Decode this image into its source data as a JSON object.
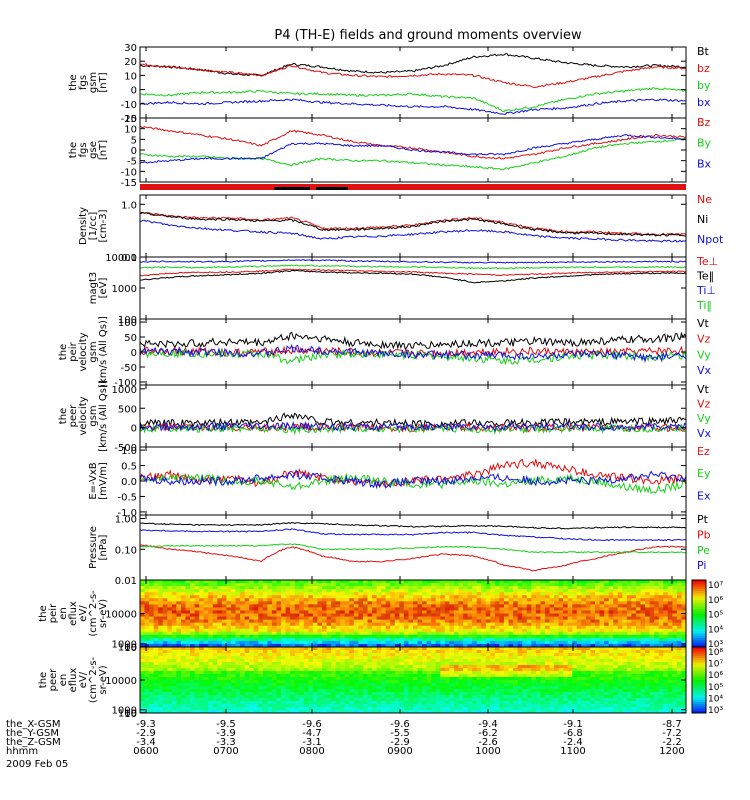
{
  "title": "P4 (TH-E) fields and ground moments overview",
  "colors": {
    "black": "#000000",
    "red": "#e01010",
    "green": "#18d018",
    "blue": "#1010e0"
  },
  "chart_data": [
    {
      "type": "line",
      "panel": "fgs_gsm",
      "ylabel": [
        "the",
        "fgs",
        "gsm",
        "[nT]"
      ],
      "ylim": [
        -20,
        30
      ],
      "yticks": [
        "30",
        "20",
        "10",
        "0",
        "-10",
        "-20"
      ],
      "series": [
        {
          "name": "Bt",
          "color": "black",
          "values": [
            17,
            16,
            14,
            11,
            10,
            18,
            16,
            13,
            12,
            13,
            17,
            23,
            25,
            22,
            19,
            17,
            16,
            17,
            16
          ]
        },
        {
          "name": "bz",
          "color": "red",
          "values": [
            18,
            16,
            14,
            12,
            10,
            17,
            12,
            10,
            9,
            10,
            11,
            10,
            5,
            2,
            5,
            9,
            13,
            16,
            15
          ]
        },
        {
          "name": "by",
          "color": "green",
          "values": [
            -3,
            -4,
            -2,
            -2,
            -1,
            -3,
            -3,
            -4,
            -4,
            -3,
            -5,
            -6,
            -15,
            -12,
            -7,
            -3,
            -1,
            1,
            -1
          ]
        },
        {
          "name": "bx",
          "color": "blue",
          "values": [
            -10,
            -9,
            -10,
            -9,
            -8,
            -7,
            -9,
            -10,
            -11,
            -12,
            -12,
            -14,
            -17,
            -14,
            -13,
            -10,
            -8,
            -7,
            -8
          ]
        }
      ]
    },
    {
      "type": "line",
      "panel": "fgs_gse",
      "ylabel": [
        "the",
        "fgs",
        "gse",
        "[nT]"
      ],
      "ylim": [
        -15,
        15
      ],
      "yticks": [
        "15",
        "10",
        "5",
        "0",
        "-5",
        "-10",
        "-15"
      ],
      "series": [
        {
          "name": "Bz",
          "color": "red",
          "values": [
            11,
            9,
            7,
            5,
            2,
            9,
            7,
            4,
            2,
            1,
            -1,
            -3,
            -4,
            -2,
            1,
            3,
            5,
            7,
            6
          ]
        },
        {
          "name": "By",
          "color": "green",
          "values": [
            -2,
            -3,
            -3,
            -4,
            -4,
            -7,
            -4,
            -5,
            -5,
            -6,
            -7,
            -8,
            -9,
            -6,
            -3,
            1,
            3,
            4,
            5
          ]
        },
        {
          "name": "Bx",
          "color": "blue",
          "values": [
            -6,
            -5,
            -4,
            -4,
            -4,
            3,
            3,
            2,
            2,
            0,
            -1,
            -2,
            -2,
            1,
            3,
            5,
            7,
            6,
            5
          ]
        }
      ]
    },
    {
      "type": "line",
      "panel": "density",
      "log": true,
      "ylabel": [
        "Density",
        "[1/cc]",
        "[cm-3]"
      ],
      "ylim": [
        0.1,
        1.5
      ],
      "yticks": [
        "1.0",
        "0.1"
      ],
      "series": [
        {
          "name": "Ne",
          "color": "red",
          "values": [
            0.7,
            0.6,
            0.55,
            0.55,
            0.5,
            0.55,
            0.35,
            0.35,
            0.37,
            0.4,
            0.5,
            0.55,
            0.45,
            0.35,
            0.3,
            0.3,
            0.28,
            0.27,
            0.27
          ]
        },
        {
          "name": "Ni",
          "color": "black",
          "values": [
            0.68,
            0.58,
            0.52,
            0.52,
            0.48,
            0.5,
            0.33,
            0.33,
            0.35,
            0.38,
            0.48,
            0.52,
            0.42,
            0.33,
            0.29,
            0.28,
            0.27,
            0.26,
            0.26
          ]
        },
        {
          "name": "Npot",
          "color": "blue",
          "values": [
            0.5,
            0.4,
            0.35,
            0.32,
            0.3,
            0.28,
            0.22,
            0.24,
            0.25,
            0.27,
            0.3,
            0.32,
            0.3,
            0.25,
            0.23,
            0.22,
            0.21,
            0.2,
            0.2
          ]
        }
      ]
    },
    {
      "type": "line",
      "panel": "temperature",
      "log": true,
      "ylabel": [
        "magt3",
        "[eV]"
      ],
      "ylim": [
        100,
        10000
      ],
      "yticks": [
        "10000",
        "1000",
        "100"
      ],
      "series": [
        {
          "name": "Te⊥",
          "color": "red",
          "values": [
            2500,
            3000,
            3200,
            3300,
            3500,
            4000,
            3800,
            3600,
            3400,
            3300,
            3000,
            2800,
            2600,
            2800,
            3000,
            3200,
            3300,
            3400,
            3400
          ]
        },
        {
          "name": "Te‖",
          "color": "black",
          "values": [
            1800,
            2200,
            2500,
            2700,
            3000,
            3600,
            3300,
            3100,
            3000,
            2800,
            2200,
            1500,
            1700,
            2100,
            2400,
            2700,
            2900,
            3000,
            3000
          ]
        },
        {
          "name": "Ti⊥",
          "color": "blue",
          "values": [
            7000,
            7200,
            7000,
            7200,
            7500,
            8000,
            7800,
            7500,
            7200,
            7000,
            6800,
            6600,
            6500,
            6700,
            6800,
            7000,
            7000,
            7200,
            7000
          ]
        },
        {
          "name": "Ti‖",
          "color": "green",
          "values": [
            4500,
            4700,
            4600,
            4800,
            5000,
            5400,
            5200,
            5000,
            4900,
            4800,
            4600,
            4400,
            4300,
            4500,
            4600,
            4700,
            4700,
            4800,
            4700
          ]
        }
      ]
    },
    {
      "type": "line",
      "panel": "peir_velocity",
      "ylabel": [
        "the",
        "peir",
        "velocity",
        "gsm",
        "[km/s (All Qs)]"
      ],
      "ylim": [
        -110,
        110
      ],
      "yticks": [
        "100",
        "50",
        "0",
        "-50",
        "-100"
      ],
      "series": [
        {
          "name": "Vt",
          "color": "black",
          "values": [
            30,
            25,
            30,
            35,
            30,
            55,
            45,
            30,
            25,
            20,
            25,
            30,
            30,
            35,
            30,
            35,
            40,
            45,
            50
          ]
        },
        {
          "name": "Vz",
          "color": "red",
          "values": [
            5,
            3,
            2,
            -2,
            0,
            5,
            3,
            0,
            -3,
            -5,
            -3,
            0,
            3,
            2,
            0,
            -2,
            0,
            3,
            5
          ]
        },
        {
          "name": "Vy",
          "color": "green",
          "values": [
            -5,
            -3,
            -5,
            -8,
            -5,
            -30,
            -10,
            -5,
            -8,
            -10,
            -15,
            -20,
            -30,
            -25,
            -15,
            -10,
            -12,
            -15,
            -10
          ]
        },
        {
          "name": "Vx",
          "color": "blue",
          "values": [
            0,
            2,
            0,
            -2,
            -5,
            10,
            5,
            0,
            -5,
            -8,
            -10,
            -12,
            -10,
            -15,
            -10,
            -8,
            -12,
            -20,
            -10
          ]
        }
      ]
    },
    {
      "type": "line",
      "panel": "peer_velocity",
      "ylabel": [
        "the",
        "peer",
        "velocity",
        "gsm",
        "[km/s (All Qs)]"
      ],
      "ylim": [
        -500,
        1100
      ],
      "yticks": [
        "1000",
        "500",
        "0",
        "-500"
      ],
      "series": [
        {
          "name": "Vt",
          "color": "black",
          "values": [
            100,
            120,
            100,
            130,
            120,
            350,
            150,
            130,
            120,
            110,
            100,
            120,
            110,
            130,
            140,
            150,
            160,
            170,
            180
          ]
        },
        {
          "name": "Vz",
          "color": "red",
          "values": [
            0,
            10,
            -10,
            10,
            0,
            20,
            0,
            10,
            0,
            -10,
            0,
            10,
            0,
            -10,
            0,
            10,
            0,
            -10,
            0
          ]
        },
        {
          "name": "Vy",
          "color": "green",
          "values": [
            -20,
            -10,
            -30,
            -20,
            -10,
            -60,
            -30,
            -20,
            -30,
            -20,
            -40,
            -30,
            -50,
            -30,
            -20,
            -30,
            -40,
            -30,
            -20
          ]
        },
        {
          "name": "Vx",
          "color": "blue",
          "values": [
            20,
            10,
            20,
            30,
            20,
            40,
            30,
            20,
            10,
            20,
            30,
            20,
            10,
            20,
            30,
            20,
            10,
            20,
            30
          ]
        }
      ]
    },
    {
      "type": "line",
      "panel": "efield",
      "ylabel": [
        "E=-VxB",
        "[mV/m]"
      ],
      "ylim": [
        -1.1,
        1.1
      ],
      "yticks": [
        "1.0",
        "0.5",
        "0.0",
        "-0.5",
        "-1.0"
      ],
      "series": [
        {
          "name": "Ez",
          "color": "red",
          "values": [
            0.1,
            0.2,
            0.0,
            0.1,
            -0.1,
            0.3,
            0.1,
            0.0,
            -0.1,
            0.0,
            0.1,
            0.2,
            0.5,
            0.6,
            0.4,
            0.2,
            0.1,
            0.0,
            0.1
          ]
        },
        {
          "name": "Ey",
          "color": "green",
          "values": [
            0.0,
            0.1,
            0.1,
            0.0,
            0.0,
            -0.2,
            0.0,
            0.1,
            0.0,
            -0.1,
            -0.1,
            0.0,
            -0.1,
            0.0,
            0.1,
            0.0,
            -0.2,
            -0.3,
            -0.1
          ]
        },
        {
          "name": "Ex",
          "color": "blue",
          "values": [
            0.1,
            0.0,
            0.0,
            0.0,
            0.1,
            0.2,
            0.1,
            0.0,
            -0.1,
            0.0,
            0.0,
            0.1,
            0.1,
            0.0,
            0.0,
            0.0,
            0.1,
            0.2,
            0.1
          ]
        }
      ]
    },
    {
      "type": "line",
      "panel": "pressure",
      "log": true,
      "ylabel": [
        "Pressure",
        "[nPa]"
      ],
      "ylim": [
        0.01,
        1.3
      ],
      "yticks": [
        "1.00",
        "0.10",
        "0.01"
      ],
      "series": [
        {
          "name": "Pt",
          "color": "black",
          "values": [
            0.7,
            0.65,
            0.62,
            0.62,
            0.62,
            0.72,
            0.68,
            0.62,
            0.58,
            0.55,
            0.56,
            0.58,
            0.56,
            0.5,
            0.48,
            0.5,
            0.52,
            0.52,
            0.5
          ]
        },
        {
          "name": "Pb",
          "color": "red",
          "values": [
            0.14,
            0.1,
            0.08,
            0.06,
            0.04,
            0.12,
            0.06,
            0.04,
            0.04,
            0.05,
            0.07,
            0.06,
            0.03,
            0.02,
            0.03,
            0.05,
            0.08,
            0.12,
            0.12
          ]
        },
        {
          "name": "Pe",
          "color": "green",
          "values": [
            0.12,
            0.13,
            0.13,
            0.13,
            0.13,
            0.15,
            0.1,
            0.1,
            0.1,
            0.11,
            0.12,
            0.12,
            0.1,
            0.08,
            0.08,
            0.08,
            0.08,
            0.08,
            0.08
          ]
        },
        {
          "name": "Pi",
          "color": "blue",
          "values": [
            0.42,
            0.4,
            0.38,
            0.38,
            0.38,
            0.45,
            0.32,
            0.3,
            0.3,
            0.3,
            0.35,
            0.35,
            0.28,
            0.25,
            0.22,
            0.2,
            0.2,
            0.2,
            0.2
          ]
        }
      ]
    },
    {
      "type": "heatmap",
      "panel": "peir_spectrogram",
      "ylabel": [
        "the",
        "peir",
        "en",
        "eflux",
        "eV/",
        "(cm^2-s-",
        "sr-eV)"
      ],
      "ylim": [
        10,
        20000
      ],
      "yticks": [
        "10000",
        "1000",
        "100",
        "10"
      ],
      "colorbar": {
        "range": [
          1000,
          10000000
        ],
        "ticks": [
          "10⁷",
          "10⁶",
          "10⁵",
          "10⁴",
          "10³"
        ]
      }
    },
    {
      "type": "heatmap",
      "panel": "peer_spectrogram",
      "ylabel": [
        "the",
        "peer",
        "en",
        "eflux",
        "eV/",
        "(cm^2-s-",
        "sr-eV)"
      ],
      "ylim": [
        6,
        20000
      ],
      "yticks": [
        "10000",
        "1000",
        "100",
        "10"
      ],
      "colorbar": {
        "range": [
          1000,
          100000000
        ],
        "ticks": [
          "10⁸",
          "10⁷",
          "10⁶",
          "10⁵",
          "10⁴",
          "10³"
        ]
      }
    }
  ],
  "time_axis": {
    "rows": [
      {
        "label": "the_X-GSM",
        "values": [
          "-9.3",
          "-9.5",
          "-9.6",
          "-9.6",
          "-9.4",
          "-9.1",
          "-8.7"
        ]
      },
      {
        "label": "the_Y-GSM",
        "values": [
          "-2.9",
          "-3.9",
          "-4.7",
          "-5.5",
          "-6.2",
          "-6.8",
          "-7.2"
        ]
      },
      {
        "label": "the_Z-GSM",
        "values": [
          "-3.4",
          "-3.3",
          "-3.1",
          "-2.9",
          "-2.6",
          "-2.4",
          "-2.2"
        ]
      },
      {
        "label": "hhmm",
        "values": [
          "0600",
          "0700",
          "0800",
          "0900",
          "1000",
          "1100",
          "1200"
        ]
      }
    ],
    "date": "2009 Feb 05"
  }
}
